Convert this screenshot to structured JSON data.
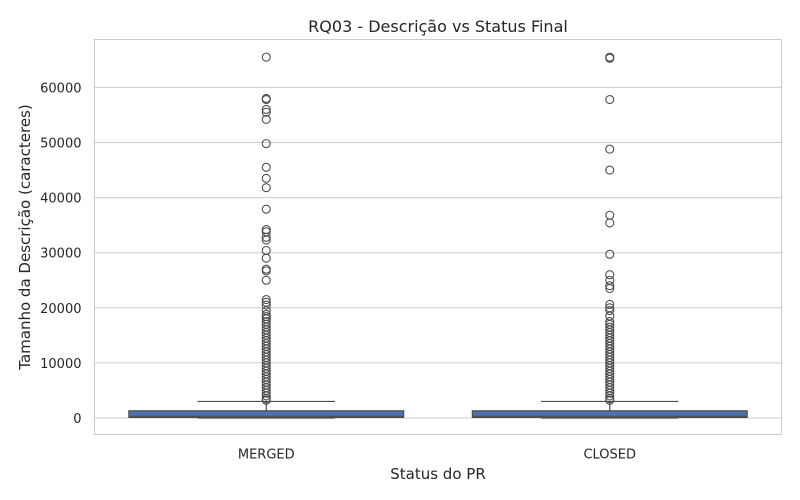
{
  "chart_data": {
    "type": "box",
    "title": "RQ03 - Descrição vs Status Final",
    "xlabel": "Status do PR",
    "ylabel": "Tamanho da Descrição (caracteres)",
    "categories": [
      "MERGED",
      "CLOSED"
    ],
    "ylim": [
      -3000,
      68700
    ],
    "yticks": [
      0,
      10000,
      20000,
      30000,
      40000,
      50000,
      60000
    ],
    "grid": true,
    "box_color": "#4c72b0",
    "boxes": [
      {
        "category": "MERGED",
        "whisker_low": 0,
        "q1": 100,
        "median": 300,
        "q3": 1300,
        "whisker_high": 3000,
        "outliers": [
          65500,
          58000,
          57800,
          56000,
          55500,
          54200,
          49800,
          45500,
          43500,
          41800,
          37900,
          34200,
          33800,
          32800,
          32300,
          30400,
          29000,
          27000,
          26700,
          25000,
          21500,
          21000,
          20500,
          19500,
          18800,
          18400,
          18000,
          17500,
          17000,
          16500,
          16000,
          15500,
          15000,
          14500,
          14000,
          13500,
          13000,
          12500,
          12000,
          11500,
          11000,
          10500,
          10000,
          9500,
          9000,
          8500,
          8000,
          7500,
          7000,
          6500,
          6000,
          5500,
          5000,
          4500,
          4000,
          3500,
          3200
        ]
      },
      {
        "category": "CLOSED",
        "whisker_low": 0,
        "q1": 100,
        "median": 300,
        "q3": 1300,
        "whisker_high": 3000,
        "outliers": [
          65500,
          65300,
          57800,
          48800,
          45000,
          36800,
          35400,
          29700,
          26000,
          25000,
          24000,
          23500,
          20600,
          20000,
          19500,
          18500,
          17500,
          17000,
          16500,
          16000,
          15500,
          15000,
          14500,
          14000,
          13500,
          13000,
          12500,
          12000,
          11500,
          11000,
          10500,
          10000,
          9500,
          9000,
          8500,
          8000,
          7500,
          7000,
          6500,
          6000,
          5500,
          5000,
          4500,
          4000,
          3500,
          3200
        ]
      }
    ]
  }
}
